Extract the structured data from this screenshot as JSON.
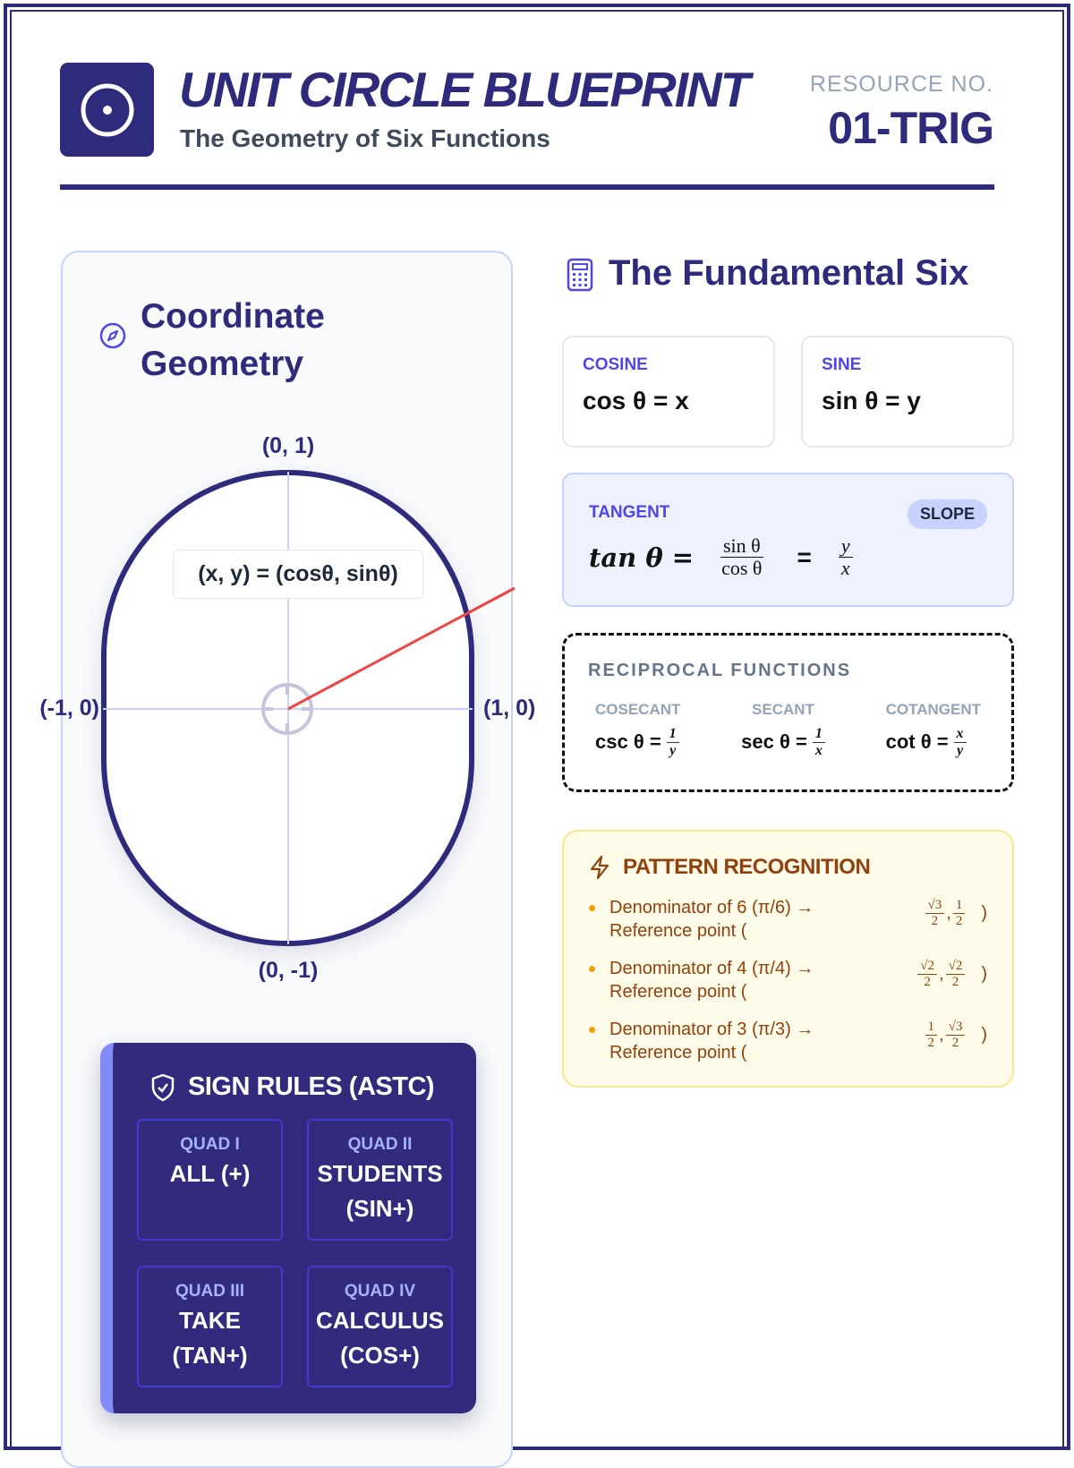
{
  "header": {
    "title": "UNIT CIRCLE BLUEPRINT",
    "subtitle": "The Geometry of Six Functions",
    "resource_label": "RESOURCE NO.",
    "resource_id": "01-TRIG"
  },
  "colors": {
    "navy": "#2e2a7c",
    "accent": "#4f46e5",
    "radius_line": "#ef4444",
    "pattern_text": "#92400e"
  },
  "geometry": {
    "heading": "Coordinate Geometry",
    "labels": {
      "top": "(0, 1)",
      "bottom": "(0, -1)",
      "left": "(-1, 0)",
      "right": "(1, 0)"
    },
    "equation": "(x, y) = (cosθ, sinθ)",
    "sign_rules": {
      "title": "SIGN RULES (ASTC)",
      "quads": [
        {
          "label": "QUAD I",
          "value": "ALL (+)"
        },
        {
          "label": "QUAD II",
          "value": "STUDENTS (SIN+)"
        },
        {
          "label": "QUAD III",
          "value": "TAKE (TAN+)"
        },
        {
          "label": "QUAD IV",
          "value": "CALCULUS (COS+)"
        }
      ]
    }
  },
  "functions": {
    "heading": "The Fundamental Six",
    "cosine": {
      "label": "COSINE",
      "formula": "cos θ = x"
    },
    "sine": {
      "label": "SINE",
      "formula": "sin θ = y"
    },
    "tangent": {
      "label": "TANGENT",
      "badge": "SLOPE",
      "lead": "tan θ =",
      "f1": {
        "n": "sin θ",
        "d": "cos θ"
      },
      "eq": "=",
      "f2": {
        "n": "y",
        "d": "x"
      }
    },
    "reciprocal": {
      "title": "RECIPROCAL FUNCTIONS",
      "items": [
        {
          "label": "COSECANT",
          "lead": "csc θ =",
          "n": "1",
          "d": "y"
        },
        {
          "label": "SECANT",
          "lead": "sec θ =",
          "n": "1",
          "d": "x"
        },
        {
          "label": "COTANGENT",
          "lead": "cot θ =",
          "n": "x",
          "d": "y"
        }
      ]
    }
  },
  "pattern": {
    "title": "PATTERN RECOGNITION",
    "items": [
      {
        "text": "Denominator of 6 (π/6) → Reference point (",
        "xn": "√3",
        "xd": "2",
        "sep": ",",
        "yn": "1",
        "yd": "2",
        "close": ")"
      },
      {
        "text": "Denominator of 4 (π/4) → Reference point (",
        "xn": "√2",
        "xd": "2",
        "sep": ",",
        "yn": "√2",
        "yd": "2",
        "close": ")"
      },
      {
        "text": "Denominator of 3 (π/3) → Reference point (",
        "xn": "1",
        "xd": "2",
        "sep": ",",
        "yn": "√3",
        "yd": "2",
        "close": ")"
      }
    ]
  }
}
